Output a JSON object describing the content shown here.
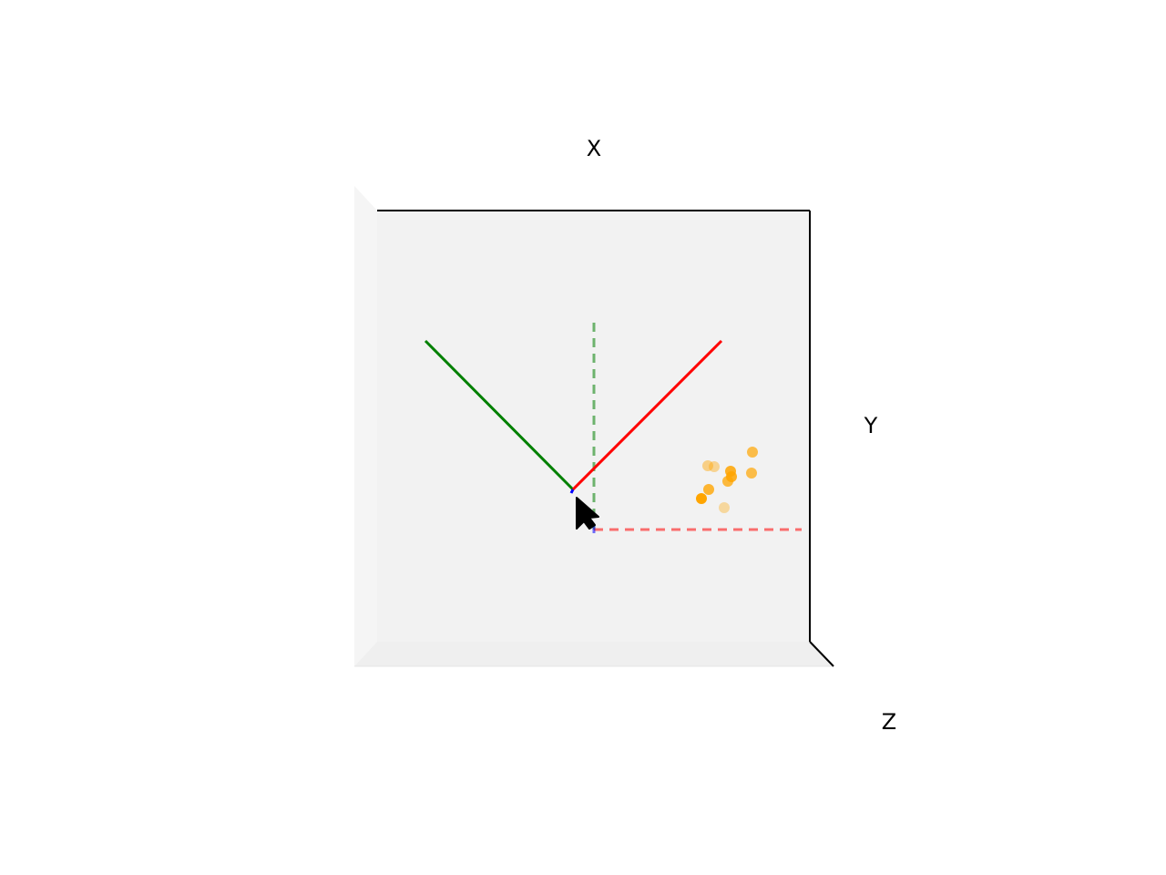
{
  "axes": {
    "x_label": "X",
    "y_label": "Y",
    "z_label": "Z"
  },
  "colors": {
    "pane_back": "#f2f2f2",
    "pane_side": "#f5f5f5",
    "pane_floor": "#f0f0f0",
    "frame": "#000000",
    "x_axis": "#ff0000",
    "y_axis": "#008000",
    "z_axis": "#0000ff",
    "points": "#ffa500",
    "cursor": "#000000"
  },
  "cursor": {
    "icon": "arrow-cursor-icon"
  }
}
